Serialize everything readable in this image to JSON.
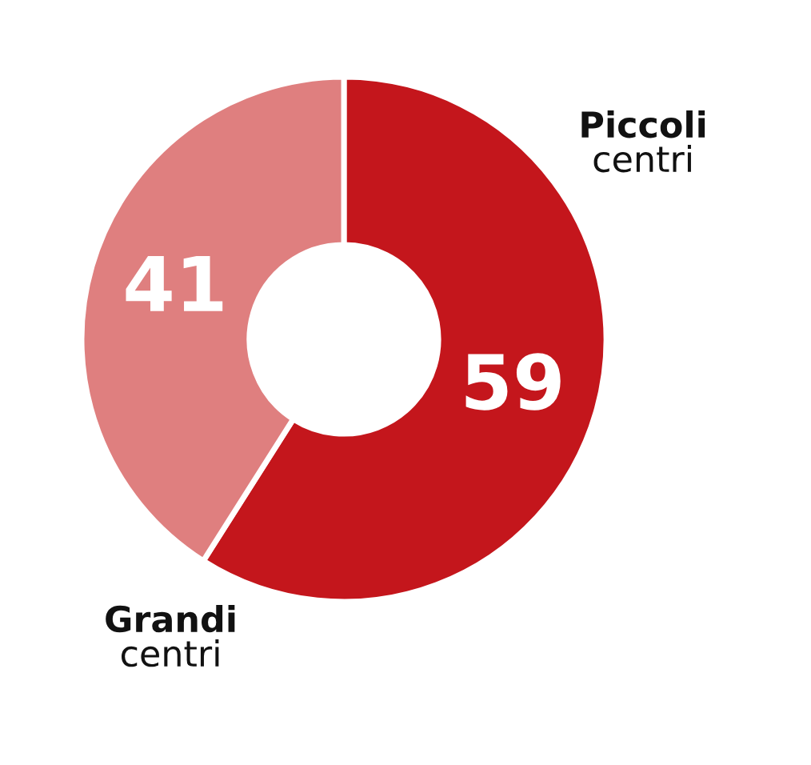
{
  "chart_data": {
    "type": "donut",
    "categories": [
      "Piccoli centri",
      "Grandi centri"
    ],
    "values": [
      59,
      41
    ],
    "colors": [
      "#c4161c",
      "#df7f7f"
    ],
    "data_labels": true
  }
}
